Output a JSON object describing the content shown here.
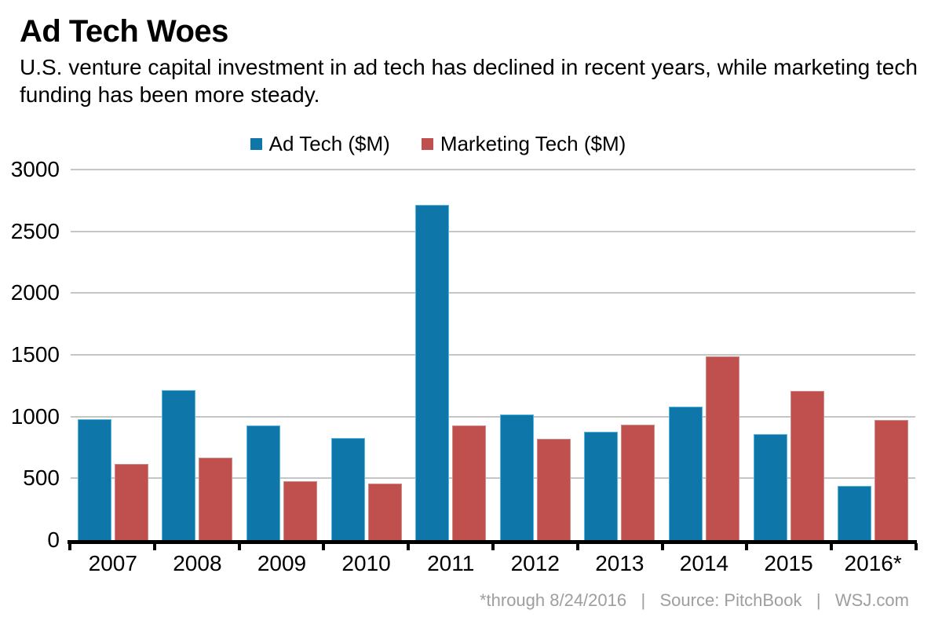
{
  "page": {
    "title": "Ad Tech Woes",
    "subtitle": "U.S. venture capital investment in ad tech has declined in recent years, while marketing tech funding has been more steady.",
    "footer": "*through 8/24/2016   |   Source: PitchBook   |   WSJ.com"
  },
  "chart_data": {
    "type": "bar",
    "title": "Ad Tech Woes",
    "subtitle": "U.S. venture capital investment in ad tech has declined in recent years, while marketing tech funding has been more steady.",
    "categories": [
      "2007",
      "2008",
      "2009",
      "2010",
      "2011",
      "2012",
      "2013",
      "2014",
      "2015",
      "2016*"
    ],
    "series": [
      {
        "name": "Ad Tech ($M)",
        "color": "#0e76a8",
        "edge_color": "#55b7dd",
        "values": [
          980,
          1215,
          925,
          825,
          2715,
          1015,
          880,
          1080,
          860,
          440
        ]
      },
      {
        "name": "Marketing Tech ($M)",
        "color": "#c0504d",
        "edge_color": "#d08a85",
        "values": [
          615,
          670,
          475,
          455,
          925,
          820,
          935,
          1490,
          1205,
          975
        ]
      }
    ],
    "xlabel": "",
    "ylabel": "",
    "ylim": [
      0,
      3000
    ],
    "yticks": [
      0,
      500,
      1000,
      1500,
      2000,
      2500,
      3000
    ],
    "grid": "horizontal",
    "legend_position": "top-center",
    "source_note": "*through 8/24/2016 | Source: PitchBook | WSJ.com"
  },
  "colors": {
    "background": "#ffffff",
    "gridline": "#c5c5c5",
    "axis": "#000000",
    "footer_text": "#9e9e9e",
    "text": "#000000"
  }
}
